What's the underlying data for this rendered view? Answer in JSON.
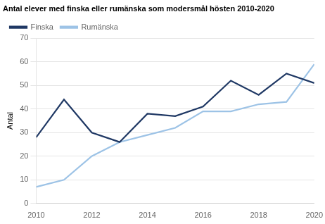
{
  "chart_data": {
    "type": "line",
    "title": "Antal elever med finska eller rumänska som modersmål hösten 2010-2020",
    "ylabel": "Antal",
    "x": [
      2010,
      2011,
      2012,
      2013,
      2014,
      2015,
      2016,
      2017,
      2018,
      2019,
      2020
    ],
    "series": [
      {
        "name": "Finska",
        "color": "#1f3864",
        "values": [
          28,
          44,
          30,
          26,
          38,
          37,
          41,
          52,
          46,
          55,
          51
        ]
      },
      {
        "name": "Rumänska",
        "color": "#9dc3e6",
        "values": [
          7,
          10,
          20,
          26,
          29,
          32,
          39,
          39,
          42,
          43,
          59
        ]
      }
    ],
    "xlim": [
      2010,
      2020
    ],
    "xticks": [
      2010,
      2012,
      2014,
      2016,
      2018,
      2020
    ],
    "ylim": [
      0,
      70
    ],
    "yticks": [
      0,
      10,
      20,
      30,
      40,
      50,
      60,
      70
    ],
    "grid": true,
    "legend": "upper left"
  }
}
